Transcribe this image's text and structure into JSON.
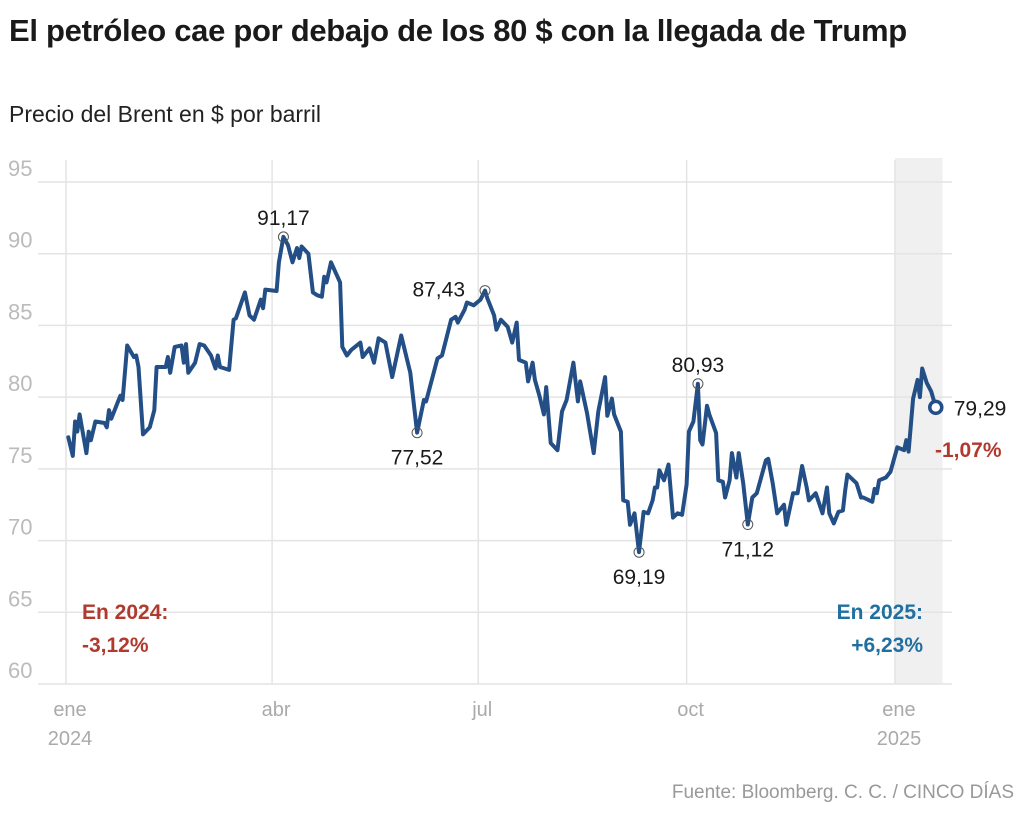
{
  "title": "El petróleo cae por debajo de los 80 $ con la llegada de Trump",
  "subtitle": "Precio del Brent en $ por barril",
  "source": "Fuente: Bloomberg. C. C. / CINCO DÍAS",
  "chart_data": {
    "type": "line",
    "title": "El petróleo cae por debajo de los 80 $ con la llegada de Trump",
    "subtitle": "Precio del Brent en $ por barril",
    "ylim": [
      60,
      95
    ],
    "yticks": [
      "95",
      "90",
      "85",
      "80",
      "75",
      "70",
      "65",
      "60"
    ],
    "xticks": [
      {
        "date": "2024-01-01",
        "label": "ene",
        "sublabel": "2024"
      },
      {
        "date": "2024-04-01",
        "label": "abr",
        "sublabel": ""
      },
      {
        "date": "2024-07-01",
        "label": "jul",
        "sublabel": ""
      },
      {
        "date": "2024-10-01",
        "label": "oct",
        "sublabel": ""
      },
      {
        "date": "2025-01-01",
        "label": "ene",
        "sublabel": "2025"
      }
    ],
    "grid": true,
    "line_color": "#234f86",
    "highlight_period": [
      "2025-01-01",
      "2025-01-22"
    ],
    "series": [
      {
        "x": [
          "2024-01-02",
          "2024-01-04",
          "2024-01-05",
          "2024-01-06",
          "2024-01-07",
          "2024-01-10",
          "2024-01-11",
          "2024-01-12",
          "2024-01-14",
          "2024-01-18",
          "2024-01-19",
          "2024-01-20",
          "2024-01-21",
          "2024-01-24",
          "2024-01-25",
          "2024-01-26",
          "2024-01-28",
          "2024-01-31",
          "2024-02-01",
          "2024-02-02",
          "2024-02-04",
          "2024-02-07",
          "2024-02-09",
          "2024-02-10",
          "2024-02-14",
          "2024-02-15",
          "2024-02-16",
          "2024-02-18",
          "2024-02-21",
          "2024-02-22",
          "2024-02-23",
          "2024-02-24",
          "2024-02-27",
          "2024-02-29",
          "2024-03-02",
          "2024-03-05",
          "2024-03-07",
          "2024-03-08",
          "2024-03-09",
          "2024-03-13",
          "2024-03-15",
          "2024-03-16",
          "2024-03-20",
          "2024-03-22",
          "2024-03-24",
          "2024-03-27",
          "2024-03-28",
          "2024-03-29",
          "2024-04-03",
          "2024-04-04",
          "2024-04-06",
          "2024-04-08",
          "2024-04-10",
          "2024-04-12",
          "2024-04-13",
          "2024-04-14",
          "2024-04-17",
          "2024-04-19",
          "2024-04-21",
          "2024-04-23",
          "2024-04-24",
          "2024-04-25",
          "2024-04-27",
          "2024-05-01",
          "2024-05-02",
          "2024-05-04",
          "2024-05-06",
          "2024-05-10",
          "2024-05-11",
          "2024-05-14",
          "2024-05-16",
          "2024-05-18",
          "2024-05-21",
          "2024-05-24",
          "2024-05-28",
          "2024-06-01",
          "2024-06-04",
          "2024-06-07",
          "2024-06-08",
          "2024-06-13",
          "2024-06-15",
          "2024-06-19",
          "2024-06-21",
          "2024-06-22",
          "2024-06-25",
          "2024-06-26",
          "2024-06-29",
          "2024-07-02",
          "2024-07-04",
          "2024-07-05",
          "2024-07-08",
          "2024-07-09",
          "2024-07-11",
          "2024-07-14",
          "2024-07-16",
          "2024-07-18",
          "2024-07-19",
          "2024-07-22",
          "2024-07-23",
          "2024-07-25",
          "2024-07-26",
          "2024-07-28",
          "2024-07-30",
          "2024-07-31",
          "2024-08-02",
          "2024-08-05",
          "2024-08-07",
          "2024-08-09",
          "2024-08-12",
          "2024-08-14",
          "2024-08-15",
          "2024-08-18",
          "2024-08-21",
          "2024-08-23",
          "2024-08-26",
          "2024-08-27",
          "2024-08-29",
          "2024-08-30",
          "2024-09-02",
          "2024-09-03",
          "2024-09-05",
          "2024-09-06",
          "2024-09-08",
          "2024-09-10",
          "2024-09-12",
          "2024-09-14",
          "2024-09-16",
          "2024-09-17",
          "2024-09-18",
          "2024-09-19",
          "2024-09-21",
          "2024-09-23",
          "2024-09-25",
          "2024-09-27",
          "2024-09-29",
          "2024-10-01",
          "2024-10-02",
          "2024-10-04",
          "2024-10-06",
          "2024-10-07",
          "2024-10-08",
          "2024-10-10",
          "2024-10-11",
          "2024-10-14",
          "2024-10-15",
          "2024-10-17",
          "2024-10-18",
          "2024-10-20",
          "2024-10-21",
          "2024-10-23",
          "2024-10-24",
          "2024-10-26",
          "2024-10-28",
          "2024-10-30",
          "2024-11-01",
          "2024-11-05",
          "2024-11-06",
          "2024-11-08",
          "2024-11-10",
          "2024-11-13",
          "2024-11-14",
          "2024-11-17",
          "2024-11-19",
          "2024-11-21",
          "2024-11-23",
          "2024-11-24",
          "2024-11-27",
          "2024-11-30",
          "2024-12-02",
          "2024-12-03",
          "2024-12-05",
          "2024-12-07",
          "2024-12-09",
          "2024-12-10",
          "2024-12-11",
          "2024-12-15",
          "2024-12-17",
          "2024-12-18",
          "2024-12-22",
          "2024-12-23",
          "2024-12-24",
          "2024-12-25",
          "2024-12-28",
          "2024-12-30",
          "2025-01-02",
          "2025-01-05",
          "2025-01-06",
          "2025-01-07",
          "2025-01-09",
          "2025-01-11",
          "2025-01-12",
          "2025-01-13",
          "2025-01-15",
          "2025-01-17",
          "2025-01-19"
        ],
        "y": [
          77.2,
          75.9,
          78.3,
          77.6,
          78.8,
          76.1,
          77.6,
          77.0,
          78.3,
          78.2,
          77.9,
          79.1,
          78.5,
          79.7,
          80.1,
          79.8,
          83.6,
          82.8,
          82.9,
          82.1,
          77.4,
          77.9,
          79.1,
          82.1,
          82.1,
          82.8,
          81.7,
          83.5,
          83.6,
          82.4,
          83.7,
          81.7,
          82.4,
          83.7,
          83.6,
          82.9,
          82.0,
          82.9,
          82.1,
          81.9,
          85.4,
          85.5,
          87.3,
          85.7,
          85.4,
          86.8,
          86.2,
          87.5,
          87.4,
          89.4,
          91.17,
          90.6,
          89.4,
          90.4,
          89.7,
          90.5,
          90.0,
          87.3,
          87.1,
          87.0,
          88.4,
          88.0,
          89.4,
          88.0,
          83.5,
          82.9,
          83.3,
          83.8,
          82.8,
          83.4,
          82.4,
          84.1,
          83.8,
          81.4,
          84.3,
          81.7,
          77.52,
          79.8,
          79.7,
          82.7,
          82.9,
          85.4,
          85.6,
          85.2,
          86.1,
          86.6,
          86.4,
          86.8,
          87.43,
          86.9,
          85.7,
          84.7,
          85.4,
          84.9,
          83.8,
          85.2,
          82.6,
          82.4,
          81.1,
          82.4,
          81.2,
          80.1,
          78.8,
          80.7,
          76.8,
          76.3,
          79.0,
          79.8,
          82.4,
          79.7,
          81.1,
          78.9,
          76.1,
          79.0,
          81.4,
          78.7,
          79.9,
          78.8,
          77.6,
          72.8,
          72.7,
          71.1,
          71.9,
          69.19,
          72.0,
          71.9,
          72.8,
          73.7,
          73.7,
          74.9,
          74.2,
          75.3,
          71.6,
          71.9,
          71.8,
          73.9,
          77.6,
          78.3,
          80.93,
          77.0,
          76.7,
          79.4,
          78.8,
          77.5,
          74.2,
          74.1,
          73.0,
          74.2,
          76.1,
          74.4,
          76.1,
          74.0,
          71.12,
          73.0,
          73.3,
          75.6,
          75.7,
          74.0,
          71.9,
          72.5,
          71.1,
          73.3,
          73.3,
          75.2,
          73.7,
          72.8,
          73.3,
          71.9,
          73.7,
          71.9,
          71.2,
          72.0,
          72.1,
          73.5,
          74.6,
          74.0,
          73.0,
          73.0,
          72.7,
          73.6,
          73.3,
          74.2,
          74.4,
          74.8,
          76.5,
          76.3,
          77.0,
          76.2,
          79.9,
          81.2,
          80.0,
          82.0,
          81.0,
          80.4,
          79.29
        ]
      }
    ],
    "annotations": [
      {
        "date": "2024-04-06",
        "value": 91.17,
        "label": "91,17",
        "pos": "above"
      },
      {
        "date": "2024-06-04",
        "value": 77.52,
        "label": "77,52",
        "pos": "below"
      },
      {
        "date": "2024-07-04",
        "value": 87.43,
        "label": "87,43",
        "pos": "left"
      },
      {
        "date": "2024-09-10",
        "value": 69.19,
        "label": "69,19",
        "pos": "below"
      },
      {
        "date": "2024-10-06",
        "value": 80.93,
        "label": "80,93",
        "pos": "above"
      },
      {
        "date": "2024-10-28",
        "value": 71.12,
        "label": "71,12",
        "pos": "below"
      },
      {
        "date": "2025-01-19",
        "value": 79.29,
        "label": "79,29",
        "pos": "right"
      }
    ],
    "last_change": {
      "label": "-1,07%",
      "color": "#b03a2e"
    },
    "notes": [
      {
        "line1": "En 2024:",
        "line2": "-3,12%",
        "color": "#b03a2e"
      },
      {
        "line1": "En 2025:",
        "line2": "+6,23%",
        "color": "#1f6fa0"
      }
    ]
  }
}
